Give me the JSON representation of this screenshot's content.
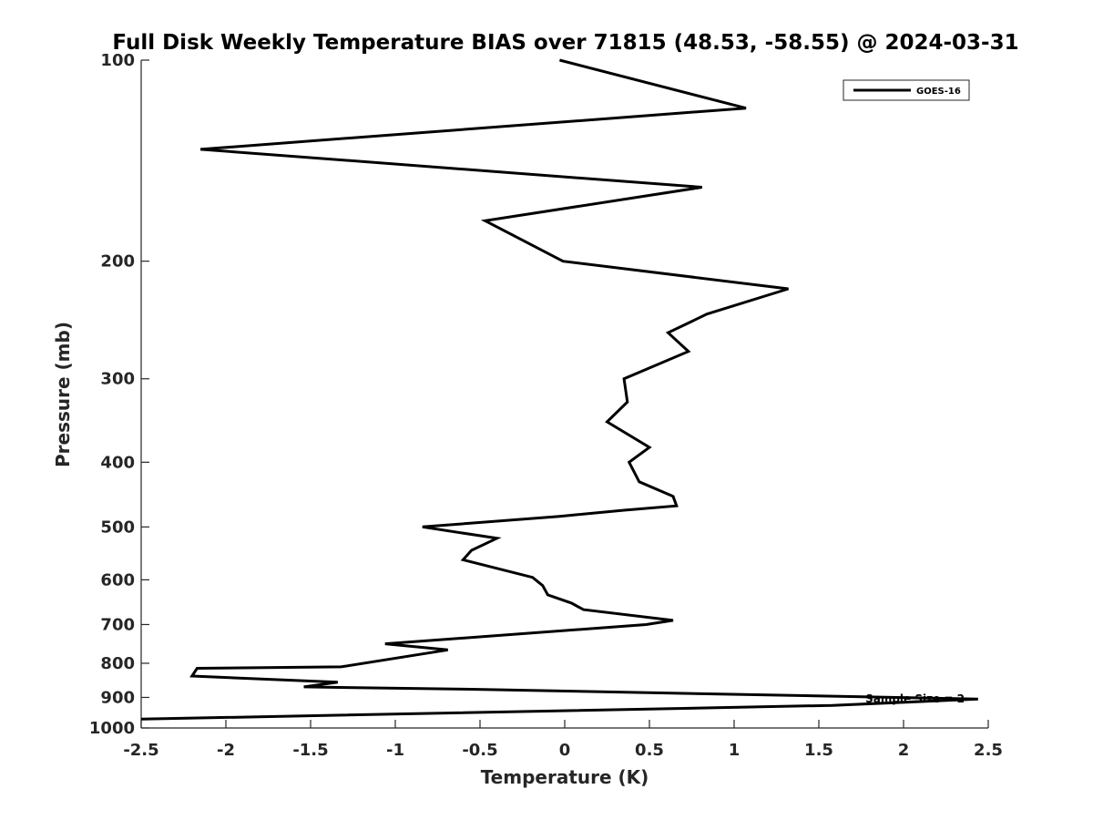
{
  "chart_data": {
    "type": "line",
    "title": "Full Disk Weekly Temperature BIAS over 71815 (48.53, -58.55) @ 2024-03-31",
    "xlabel": "Temperature (K)",
    "ylabel": "Pressure (mb)",
    "xlim": [
      -2.5,
      2.5
    ],
    "ylim": [
      100,
      1000
    ],
    "y_scale": "log",
    "y_reversed": true,
    "grid": false,
    "legend_position": "top-right",
    "xticks": [
      -2.5,
      -2,
      -1.5,
      -1,
      -0.5,
      0,
      0.5,
      1,
      1.5,
      2,
      2.5
    ],
    "xtick_labels": [
      "-2.5",
      "-2",
      "-1.5",
      "-1",
      "-0.5",
      "0",
      "0.5",
      "1",
      "1.5",
      "2",
      "2.5"
    ],
    "yticks": [
      100,
      200,
      300,
      400,
      500,
      600,
      700,
      800,
      900,
      1000
    ],
    "ytick_labels": [
      "100",
      "200",
      "300",
      "400",
      "500",
      "600",
      "700",
      "800",
      "900",
      "1000"
    ],
    "annotation": "Sample Size = 2",
    "series": [
      {
        "name": "GOES-16",
        "color": "#000000",
        "x": [
          -0.03,
          1.07,
          -2.15,
          0.81,
          -0.47,
          -0.01,
          1.32,
          0.84,
          0.61,
          0.73,
          0.35,
          0.37,
          0.25,
          0.5,
          0.38,
          0.44,
          0.64,
          0.66,
          0.35,
          -0.03,
          -0.84,
          -0.4,
          -0.55,
          -0.6,
          -0.19,
          -0.13,
          -0.1,
          0.04,
          0.11,
          0.64,
          0.48,
          -1.06,
          -0.69,
          -1.32,
          -2.17,
          -2.2,
          -1.34,
          -1.54,
          -0.55,
          2.44,
          1.58,
          -2.5
        ],
        "y": [
          100,
          118,
          136,
          155,
          174,
          200,
          220,
          240,
          256,
          273,
          300,
          325,
          348,
          380,
          400,
          428,
          450,
          465,
          472,
          482,
          500,
          520,
          542,
          560,
          595,
          612,
          632,
          650,
          665,
          690,
          700,
          748,
          764,
          810,
          814,
          836,
          854,
          868,
          875,
          905,
          925,
          970
        ]
      }
    ]
  }
}
